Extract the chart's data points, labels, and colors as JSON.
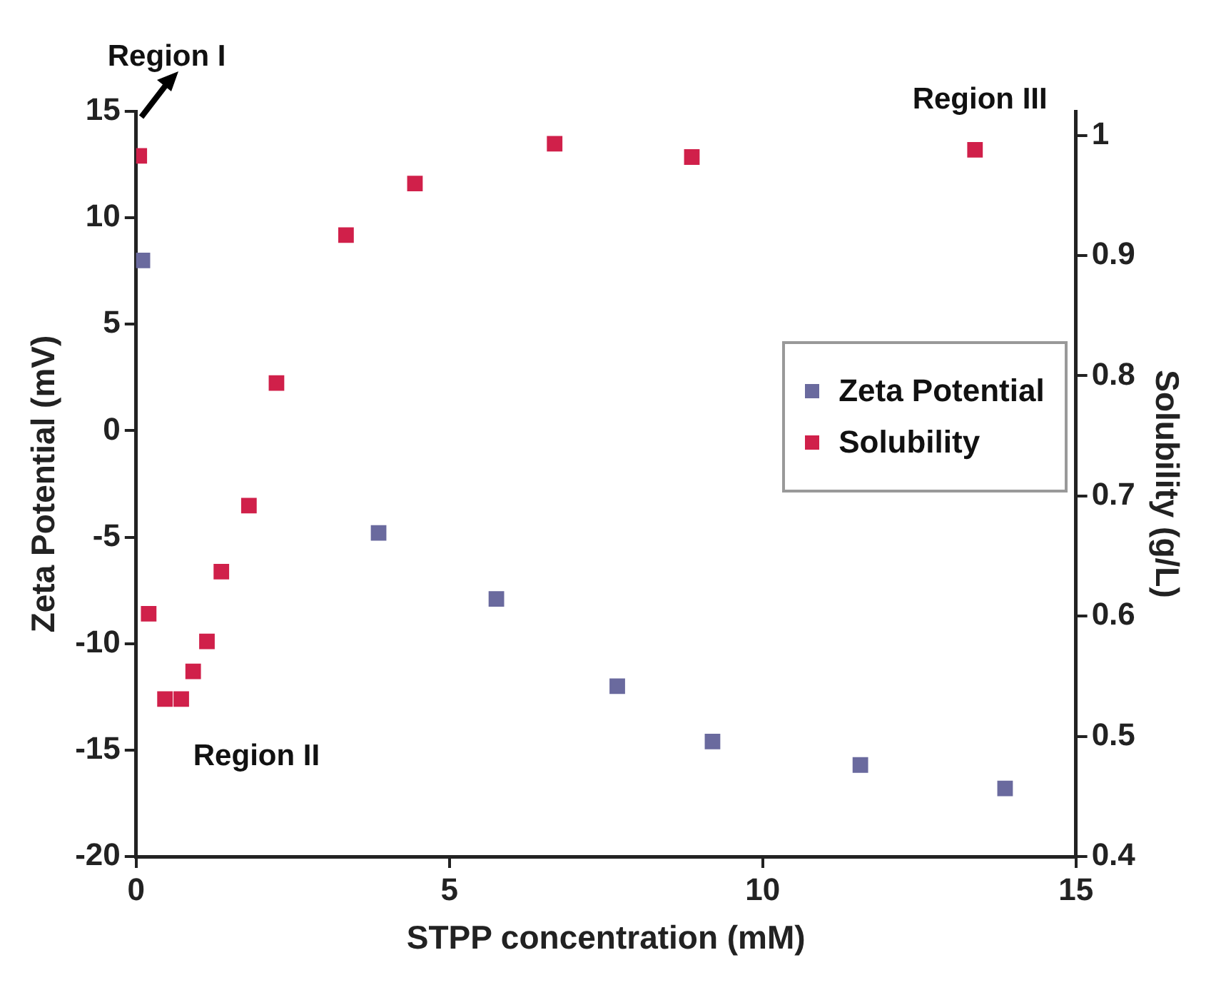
{
  "chart_data": {
    "type": "scatter",
    "xlabel": "STPP concentration (mM)",
    "ylabel": "Zeta Potential (mV)",
    "y2label": "Solubility (g/L)",
    "xlim": [
      0,
      15
    ],
    "xticks": [
      0,
      5,
      10,
      15
    ],
    "ylim": [
      -20,
      15
    ],
    "yticks": [
      -20,
      -15,
      -10,
      -5,
      0,
      5,
      10,
      15
    ],
    "y2lim": [
      0.4,
      1.02
    ],
    "y2ticks": [
      0.4,
      0.5,
      0.6,
      0.7,
      0.8,
      0.9,
      1
    ],
    "marker": "square",
    "grid": false,
    "legend": "right",
    "annotations": [
      "Region I",
      "Region II",
      "Region III"
    ],
    "series": [
      {
        "name": "Zeta Potential",
        "color": "#6a6a9e",
        "x": [
          0.1,
          3.87,
          5.75,
          7.68,
          9.2,
          11.56,
          13.87
        ],
        "values": [
          8.0,
          -4.8,
          -7.9,
          -12.0,
          -14.6,
          -15.7,
          -16.8
        ]
      },
      {
        "name": "Solubility",
        "color": "#d0204a",
        "axis": "y2",
        "x": [
          0.05,
          0.2,
          0.46,
          0.72,
          0.91,
          1.13,
          1.36,
          1.8,
          2.24,
          3.35,
          4.45,
          6.68,
          8.87,
          13.39
        ],
        "values": [
          0.983,
          0.602,
          0.531,
          0.531,
          0.554,
          0.579,
          0.637,
          0.692,
          0.794,
          0.917,
          0.96,
          0.993,
          0.982,
          0.988
        ]
      }
    ]
  }
}
